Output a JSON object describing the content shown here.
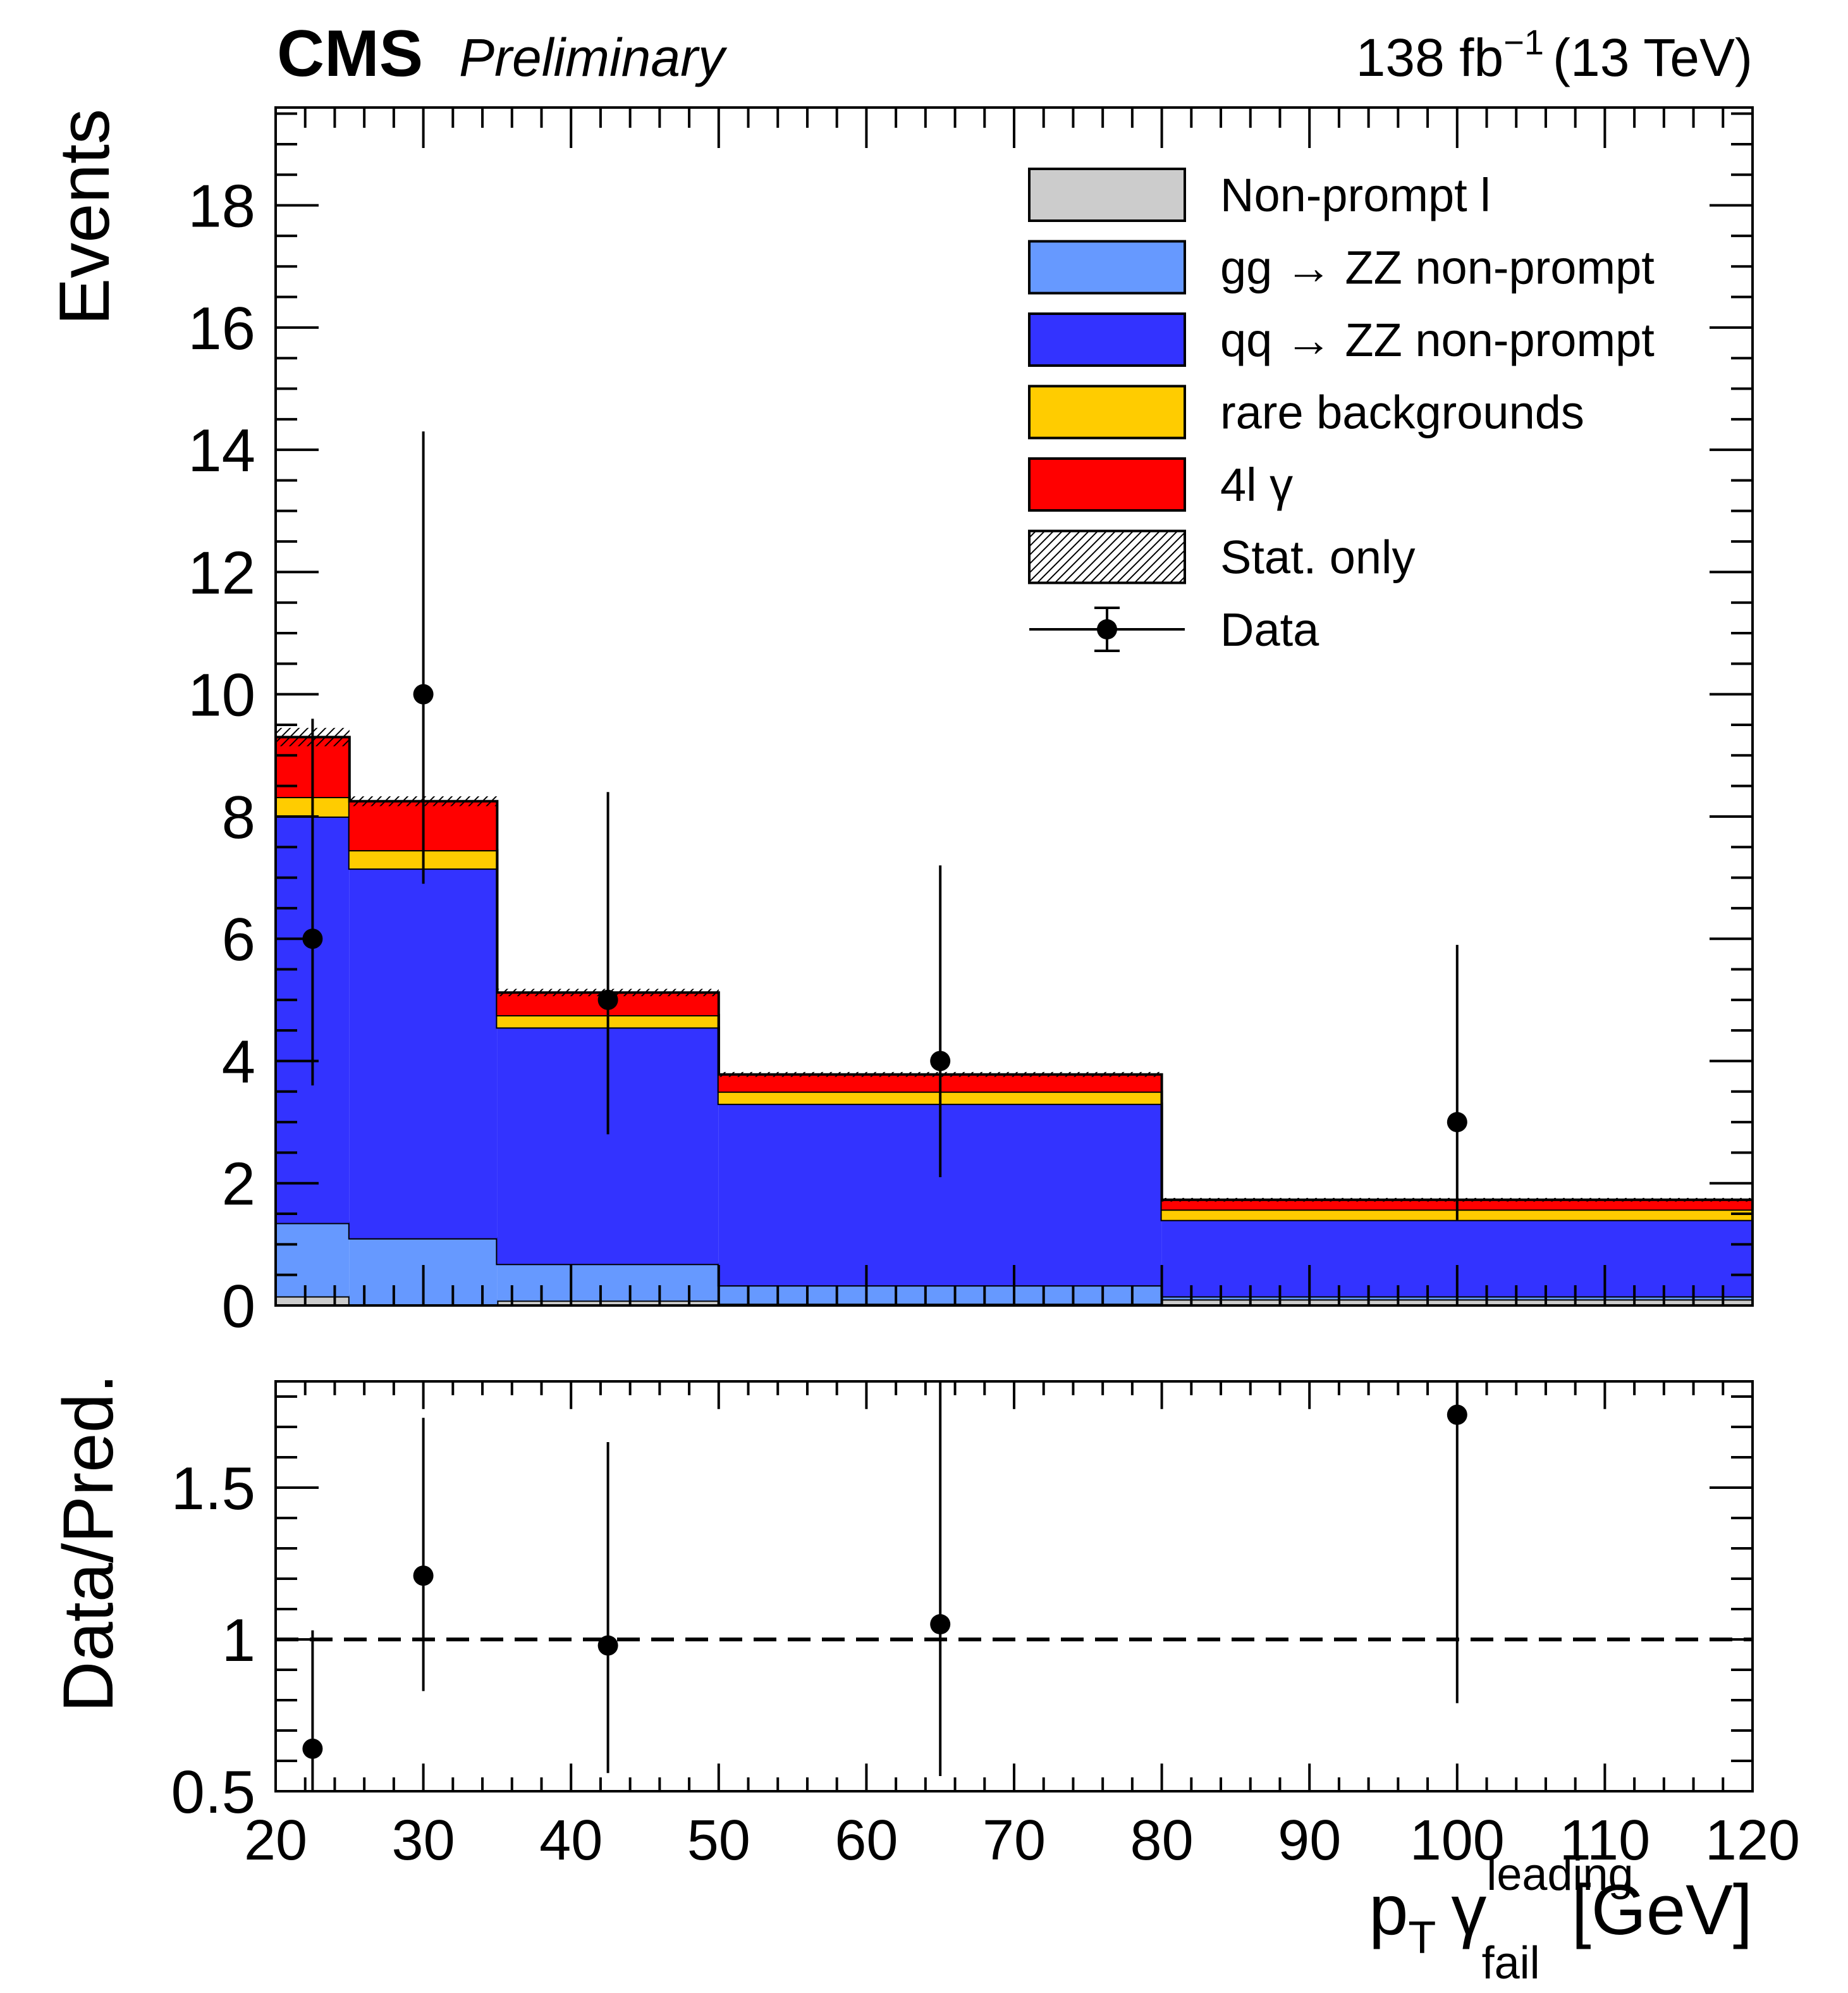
{
  "header": {
    "experiment": "CMS",
    "status": "Preliminary",
    "lumi_value": "138 fb",
    "lumi_exponent": "−1",
    "energy": "(13 TeV)"
  },
  "colors": {
    "nonprompt_l": "#cccccc",
    "gg_zz": "#6699ff",
    "qq_zz": "#3333ff",
    "rare": "#ffcc00",
    "signal_4lgamma": "#ff0000",
    "data": "#000000"
  },
  "chart_data": [
    {
      "type": "bar",
      "subtype": "stacked_histogram",
      "ylabel": "Events",
      "xlim": [
        20,
        120
      ],
      "ylim": [
        0,
        19.6
      ],
      "bin_edges": [
        20,
        25,
        35,
        50,
        80,
        120
      ],
      "yticks": [
        "0",
        "2",
        "4",
        "6",
        "8",
        "10",
        "12",
        "14",
        "16",
        "18"
      ],
      "series": [
        {
          "name": "Non-prompt l",
          "color_key": "nonprompt_l",
          "values": [
            0.15,
            0.02,
            0.08,
            0.03,
            0.1
          ]
        },
        {
          "name": "gg → ZZ non-prompt",
          "color_key": "gg_zz",
          "values": [
            1.2,
            1.08,
            0.6,
            0.3,
            0.05
          ]
        },
        {
          "name": "qq → ZZ non-prompt",
          "color_key": "qq_zz",
          "values": [
            6.65,
            6.05,
            3.87,
            2.97,
            1.25
          ]
        },
        {
          "name": "rare backgrounds",
          "color_key": "rare",
          "values": [
            0.32,
            0.3,
            0.2,
            0.2,
            0.17
          ]
        },
        {
          "name": "4l γ",
          "color_key": "signal_4lgamma",
          "values": [
            0.98,
            0.8,
            0.37,
            0.28,
            0.16
          ]
        }
      ],
      "stat_unc": [
        0.15,
        0.08,
        0.06,
        0.04,
        0.03
      ],
      "data": {
        "name": "Data",
        "x": [
          22.5,
          30,
          42.5,
          65,
          100
        ],
        "y": [
          6,
          10,
          5,
          4,
          3
        ],
        "err_low": [
          2.4,
          3.1,
          2.2,
          1.9,
          1.6
        ],
        "err_high": [
          3.6,
          4.3,
          3.4,
          3.2,
          2.9
        ]
      },
      "legend": {
        "position": "top-right",
        "entries": [
          "Non-prompt l",
          "gg → ZZ non-prompt",
          "qq → ZZ non-prompt",
          "rare backgrounds",
          "4l γ",
          "Stat. only",
          "Data"
        ]
      }
    },
    {
      "type": "scatter",
      "subtype": "ratio",
      "ylabel": "Data/Pred.",
      "xlabel": "p_T γ_fail^leading [GeV]",
      "xlim": [
        20,
        120
      ],
      "ylim": [
        0.5,
        1.85
      ],
      "yticks": [
        "0.5",
        "1",
        "1.5"
      ],
      "xticks": [
        "20",
        "30",
        "40",
        "50",
        "60",
        "70",
        "80",
        "90",
        "100",
        "110",
        "120"
      ],
      "reference_line": 1,
      "x": [
        22.5,
        30,
        42.5,
        65,
        100
      ],
      "y": [
        0.64,
        1.21,
        0.98,
        1.05,
        1.74
      ],
      "err_low": [
        0.64,
        0.38,
        0.42,
        0.5,
        0.95
      ],
      "err_high": [
        0.39,
        0.52,
        0.67,
        0.8,
        0.9
      ]
    }
  ],
  "axis_labels": {
    "events": "Events",
    "ratio": "Data/Pred.",
    "x_main": "p",
    "x_sub_T": "T",
    "x_gamma": "γ",
    "x_sup": "leading",
    "x_sub_fail": "fail",
    "x_unit": "[GeV]"
  }
}
